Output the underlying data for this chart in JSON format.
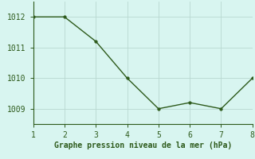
{
  "x": [
    1,
    2,
    3,
    4,
    5,
    6,
    7,
    8
  ],
  "y": [
    1012.0,
    1012.0,
    1011.2,
    1010.0,
    1009.0,
    1009.2,
    1009.0,
    1010.0
  ],
  "line_color": "#2d5a1b",
  "marker_color": "#2d5a1b",
  "bg_color": "#d8f5f0",
  "grid_color": "#b8d8d0",
  "xlabel": "Graphe pression niveau de la mer (hPa)",
  "xlabel_color": "#2d5a1b",
  "tick_color": "#2d5a1b",
  "spine_color": "#2d5a1b",
  "xlim": [
    1,
    8
  ],
  "ylim": [
    1008.5,
    1012.5
  ],
  "yticks": [
    1009,
    1010,
    1011,
    1012
  ],
  "xticks": [
    1,
    2,
    3,
    4,
    5,
    6,
    7,
    8
  ],
  "xlabel_fontsize": 7,
  "tick_fontsize": 7,
  "marker_size": 2.5,
  "line_width": 1.0
}
